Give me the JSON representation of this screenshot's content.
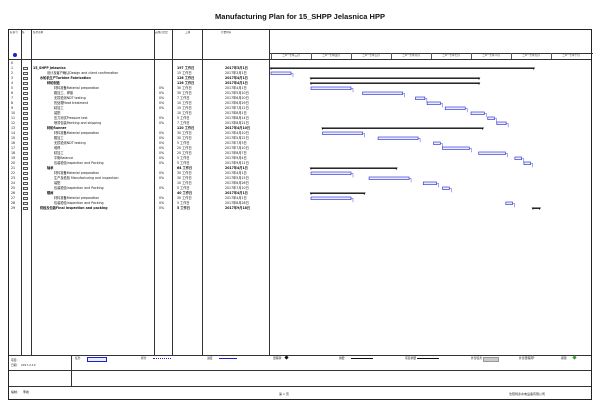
{
  "title": "Manufacturing Plan for 15_SHPP Jelasnica    HPP",
  "columns": {
    "id": "标识号",
    "mode": "任",
    "name": "任务名称",
    "pct": "完成百分比",
    "duration": "工期",
    "start": "开始时间"
  },
  "timescale": [
    "二O一七年三月",
    "二O一七年四月",
    "二O一七年五月",
    "二O一七年六月",
    "二O一七年七月",
    "二O一七年八月",
    "二O一七年九月",
    "二O一七年十月"
  ],
  "tasks": [
    {
      "id": "0",
      "name": "",
      "indent": 0,
      "bold": false,
      "pct": "",
      "duration": "",
      "start": ""
    },
    {
      "id": "1",
      "name": "15_SHPP Jelasnica",
      "indent": 0,
      "bold": true,
      "pct": "",
      "duration": "197 工作日",
      "start": "2017年3月1日"
    },
    {
      "id": "2",
      "name": "设计及客户确认Design and client confirmation",
      "indent": 2,
      "bold": false,
      "pct": "",
      "duration": "15 工作日",
      "start": "2017年3月1日"
    },
    {
      "id": "3",
      "name": "水轮机生产Turbine Fabrication",
      "indent": 1,
      "bold": true,
      "pct": "",
      "duration": "126 工作日",
      "start": "2017年4月1日"
    },
    {
      "id": "4",
      "name": "转轮制造",
      "indent": 2,
      "bold": true,
      "pct": "",
      "duration": "126 工作日",
      "start": "2017年4月1日"
    },
    {
      "id": "5",
      "name": "材料准备Material preparation",
      "indent": 3,
      "bold": false,
      "pct": "0%",
      "duration": "30 工作日",
      "start": "2017年4月1日"
    },
    {
      "id": "6",
      "name": "粗加工、焊接",
      "indent": 3,
      "bold": false,
      "pct": "0%",
      "duration": "30 工作日",
      "start": "2017年5月10日"
    },
    {
      "id": "7",
      "name": "无损检测NDT testing",
      "indent": 3,
      "bold": false,
      "pct": "0%",
      "duration": "7 工作日",
      "start": "2017年6月20日"
    },
    {
      "id": "8",
      "name": "热处理Heat treatment",
      "indent": 3,
      "bold": false,
      "pct": "0%",
      "duration": "10 工作日",
      "start": "2017年6月29日"
    },
    {
      "id": "9",
      "name": "精加工",
      "indent": 3,
      "bold": false,
      "pct": "0%",
      "duration": "15 工作日",
      "start": "2017年7月12日"
    },
    {
      "id": "10",
      "name": "装配",
      "indent": 3,
      "bold": false,
      "pct": "",
      "duration": "10 工作日",
      "start": "2017年8月1日"
    },
    {
      "id": "11",
      "name": "压力测试Pressure test",
      "indent": 3,
      "bold": false,
      "pct": "0%",
      "duration": "5 工作日",
      "start": "2017年8月14日"
    },
    {
      "id": "12",
      "name": "喷漆包装Painting and shipping",
      "indent": 3,
      "bold": false,
      "pct": "0%",
      "duration": "7 工作日",
      "start": "2017年8月21日"
    },
    {
      "id": "13",
      "name": "转轮Runner",
      "indent": 2,
      "bold": true,
      "pct": "",
      "duration": "120 工作日",
      "start": "2017年4月10日"
    },
    {
      "id": "14",
      "name": "材料准备Material preparation",
      "indent": 3,
      "bold": false,
      "pct": "0%",
      "duration": "30 工作日",
      "start": "2017年4月10日"
    },
    {
      "id": "15",
      "name": "粗加工",
      "indent": 3,
      "bold": false,
      "pct": "0%",
      "duration": "30 工作日",
      "start": "2017年5月22日"
    },
    {
      "id": "16",
      "name": "无损检测NDT testing",
      "indent": 3,
      "bold": false,
      "pct": "0%",
      "duration": "5 工作日",
      "start": "2017年7月3日"
    },
    {
      "id": "17",
      "name": "堆焊",
      "indent": 3,
      "bold": false,
      "pct": "0%",
      "duration": "20 工作日",
      "start": "2017年7月10日"
    },
    {
      "id": "18",
      "name": "精加工",
      "indent": 3,
      "bold": false,
      "pct": "0%",
      "duration": "20 工作日",
      "start": "2017年8月7日"
    },
    {
      "id": "19",
      "name": "平衡Balance",
      "indent": 3,
      "bold": false,
      "pct": "0%",
      "duration": "5 工作日",
      "start": "2017年9月4日"
    },
    {
      "id": "20",
      "name": "包装检验Inspection and Packing",
      "indent": 3,
      "bold": false,
      "pct": "0%",
      "duration": "5 工作日",
      "start": "2017年9月11日"
    },
    {
      "id": "21",
      "name": "轴承",
      "indent": 2,
      "bold": true,
      "pct": "",
      "duration": "64 工作日",
      "start": "2017年4月1日"
    },
    {
      "id": "22",
      "name": "材料准备Material preparation",
      "indent": 3,
      "bold": false,
      "pct": "0%",
      "duration": "30 工作日",
      "start": "2017年4月1日"
    },
    {
      "id": "23",
      "name": "生产及检验 Manufacturing and inspection",
      "indent": 3,
      "bold": false,
      "pct": "0%",
      "duration": "30 工作日",
      "start": "2017年5月15日"
    },
    {
      "id": "24",
      "name": "装配",
      "indent": 3,
      "bold": false,
      "pct": "",
      "duration": "10 工作日",
      "start": "2017年6月26日"
    },
    {
      "id": "25",
      "name": "包装检验Inspection and Packing",
      "indent": 3,
      "bold": false,
      "pct": "0%",
      "duration": "5 工作日",
      "start": "2017年7月10日"
    },
    {
      "id": "26",
      "name": "蝶阀",
      "indent": 2,
      "bold": true,
      "pct": "",
      "duration": "40 工作日",
      "start": "2017年4月1日"
    },
    {
      "id": "27",
      "name": "材料准备Material preparation",
      "indent": 3,
      "bold": false,
      "pct": "0%",
      "duration": "30 工作日",
      "start": "2017年4月1日"
    },
    {
      "id": "28",
      "name": "包装检验Inspection and Packing",
      "indent": 3,
      "bold": false,
      "pct": "0%",
      "duration": "5 工作日",
      "start": "2017年8月28日"
    },
    {
      "id": "29",
      "name": "终检及包装Final inspection and packing",
      "indent": 1,
      "bold": true,
      "pct": "0%",
      "duration": "5 工作日",
      "start": "2017年9月18日"
    }
  ],
  "legend": {
    "project_label": "项目:",
    "project_value": "",
    "date_label": "日期:",
    "date_value": "2017-2-10",
    "items": [
      "任务",
      "拆分",
      "进度",
      "里程碑",
      "摘要",
      "项目摘要",
      "外部任务",
      "外部里程碑",
      "期限"
    ]
  },
  "footer": {
    "left_label": "编制:",
    "left_value": "李峰",
    "page": "第 1 页",
    "company": "沈阳特泰水电设备有限公司"
  },
  "colors": {
    "bar_border": "#1f1fcc",
    "bar_fill": "#e8ecff",
    "summary": "#111111"
  }
}
